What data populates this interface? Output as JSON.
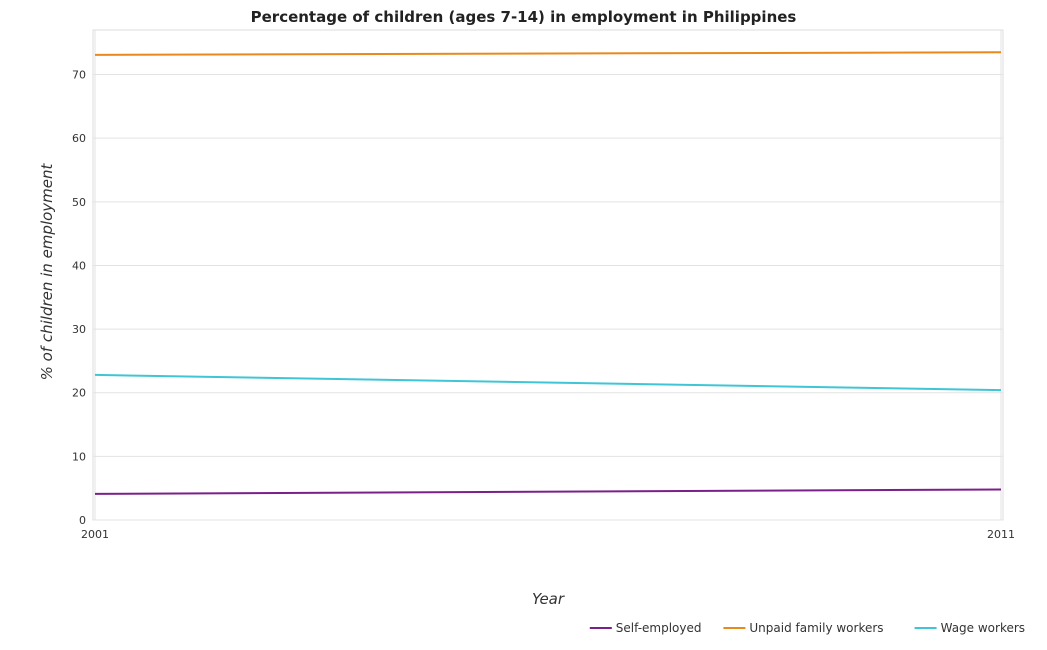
{
  "chart_data": {
    "type": "line",
    "title": "Percentage of children (ages 7-14) in employment in Philippines",
    "xlabel": "Year",
    "ylabel": "% of children in employment",
    "categories": [
      "2001",
      "2011"
    ],
    "ylim": [
      0,
      77
    ],
    "yticks": [
      0,
      10,
      20,
      30,
      40,
      50,
      60,
      70
    ],
    "grid": true,
    "legend_position": "bottom-right",
    "series": [
      {
        "name": "Self-employed",
        "color": "#7b1f8a",
        "values": [
          4.1,
          4.8
        ]
      },
      {
        "name": "Unpaid family workers",
        "color": "#e8891c",
        "values": [
          73.1,
          73.5
        ]
      },
      {
        "name": "Wage workers",
        "color": "#3ec6d6",
        "values": [
          22.8,
          20.4
        ]
      }
    ]
  }
}
